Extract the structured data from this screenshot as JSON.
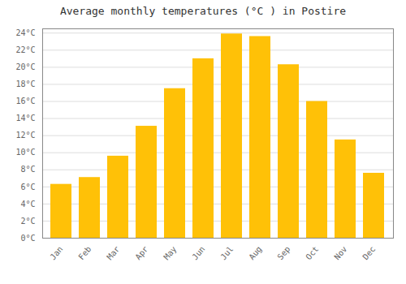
{
  "chart_data": {
    "type": "bar",
    "title": "Average monthly temperatures (°C ) in Postire",
    "categories": [
      "Jan",
      "Feb",
      "Mar",
      "Apr",
      "May",
      "Jun",
      "Jul",
      "Aug",
      "Sep",
      "Oct",
      "Nov",
      "Dec"
    ],
    "values": [
      6.3,
      7.1,
      9.6,
      13.1,
      17.5,
      21.0,
      23.9,
      23.6,
      20.3,
      16.0,
      11.5,
      7.6
    ],
    "color": "#FFC107",
    "ylim": [
      0,
      24.5
    ],
    "yticks": [
      {
        "value": 0,
        "label": "0°C"
      },
      {
        "value": 2,
        "label": "2°C"
      },
      {
        "value": 4,
        "label": "4°C"
      },
      {
        "value": 6,
        "label": "6°C"
      },
      {
        "value": 8,
        "label": "8°C"
      },
      {
        "value": 10,
        "label": "10°C"
      },
      {
        "value": 12,
        "label": "12°C"
      },
      {
        "value": 14,
        "label": "14°C"
      },
      {
        "value": 16,
        "label": "16°C"
      },
      {
        "value": 18,
        "label": "18°C"
      },
      {
        "value": 20,
        "label": "20°C"
      },
      {
        "value": 22,
        "label": "22°C"
      },
      {
        "value": 24,
        "label": "24°C"
      }
    ],
    "grid": true
  }
}
